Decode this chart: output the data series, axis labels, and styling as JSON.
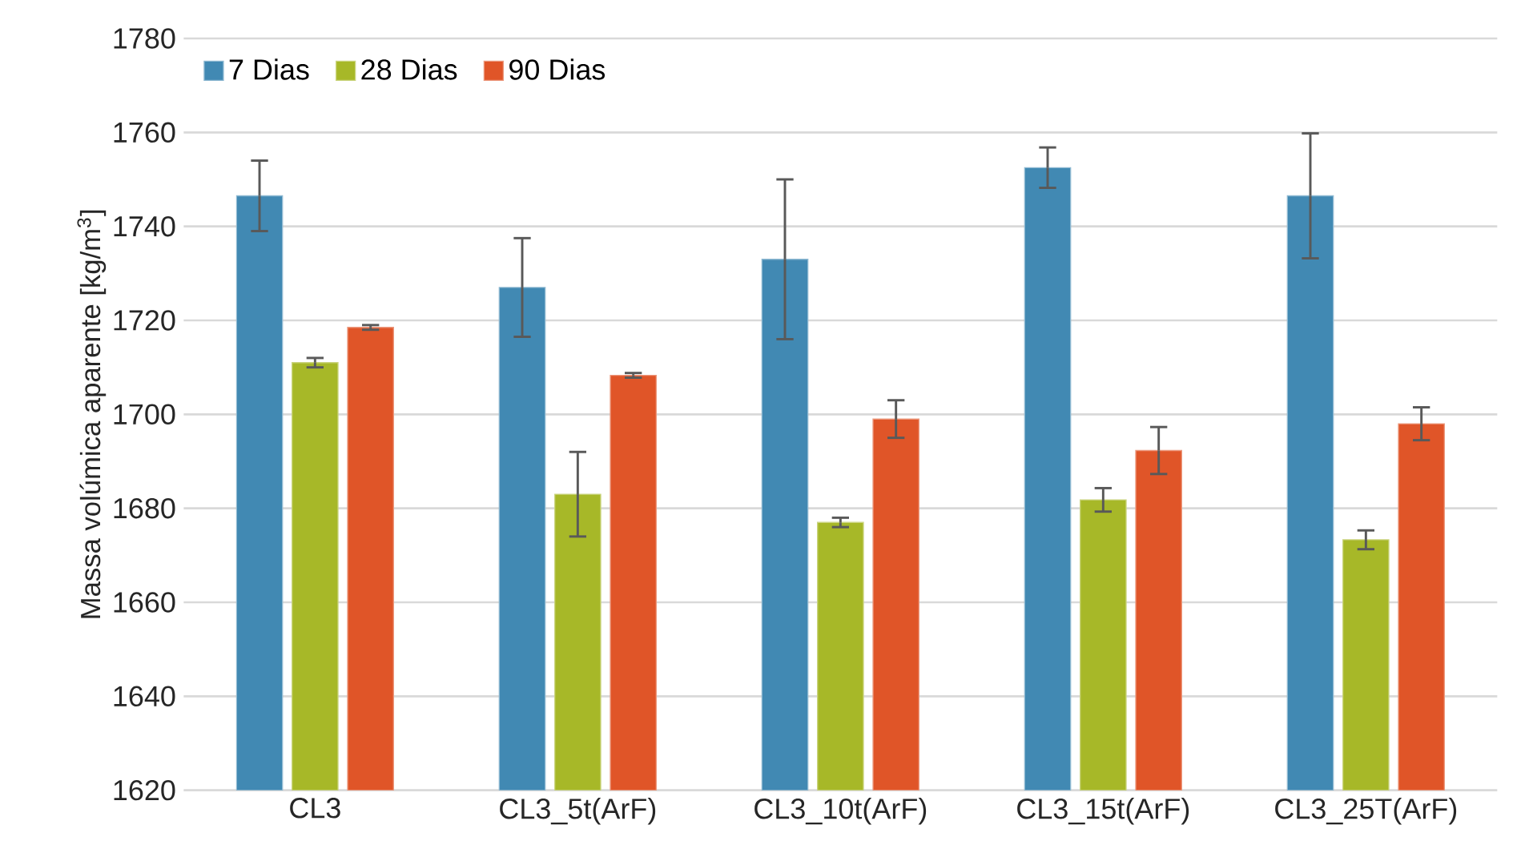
{
  "chart_data": {
    "type": "bar",
    "ylabel": "Massa volúmica aparente [kg/m$^{3}$]",
    "categories": [
      "CL3",
      "CL3_5t(ArF)",
      "CL3_10t(ArF)",
      "CL3_15t(ArF)",
      "CL3_25T(ArF)"
    ],
    "series": [
      {
        "name": "7 Dias",
        "color": "#4189b3",
        "values": [
          1746.5,
          1727,
          1733,
          1752.5,
          1746.5
        ],
        "errors": [
          7.5,
          10.5,
          17,
          4.3,
          13.3
        ]
      },
      {
        "name": "28 Dias",
        "color": "#a7b828",
        "values": [
          1711,
          1683,
          1677,
          1681.8,
          1673.3
        ],
        "errors": [
          1,
          9,
          1,
          2.5,
          2
        ]
      },
      {
        "name": "90 Dias",
        "color": "#e05528",
        "values": [
          1718.5,
          1708.3,
          1699,
          1692.3,
          1698
        ],
        "errors": [
          0.5,
          0.5,
          4,
          5,
          3.5
        ]
      }
    ],
    "ylim": [
      1620,
      1780
    ],
    "yticks": [
      1620,
      1640,
      1660,
      1680,
      1700,
      1720,
      1740,
      1760,
      1780
    ],
    "grid": "y",
    "legend": "top left"
  }
}
